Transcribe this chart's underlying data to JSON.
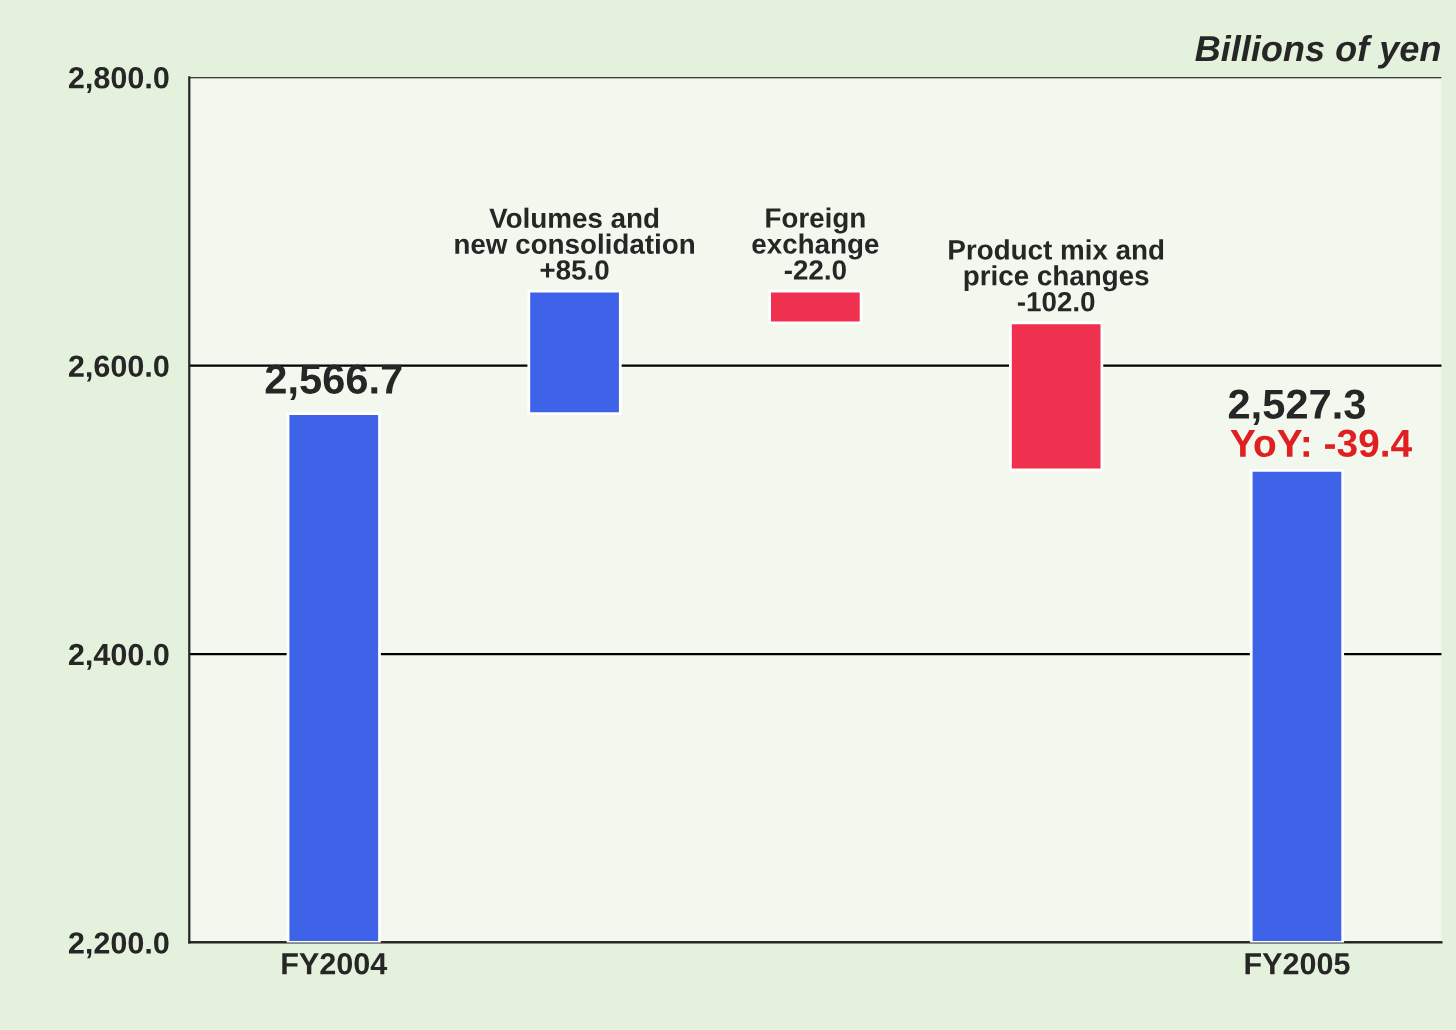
{
  "chart_data": {
    "type": "bar",
    "ylabel": "Billions of yen",
    "categories": [
      "FY2004",
      null,
      null,
      null,
      "FY2005"
    ],
    "base": [
      2200.0,
      2566.7,
      2651.7,
      2629.7,
      2200.0
    ],
    "values": [
      366.7,
      85.0,
      -22.0,
      -102.0,
      327.3
    ],
    "colors": [
      "#3f63e8",
      "#3f63e8",
      "#f0304f",
      "#f0304f",
      "#3f63e8"
    ],
    "value_labels": [
      "2,566.7",
      "+85.0",
      "-22.0",
      "-102.0",
      "2,527.3"
    ],
    "annotations": [
      "Volumes and\nnew consolidation",
      "Foreign\nexchange",
      "Product mix and\nprice changes",
      "YoY: -39.4"
    ],
    "ylim": [
      2200,
      2800
    ],
    "yticks": [
      {
        "value": 2200,
        "label": "2,200.0"
      },
      {
        "value": 2400,
        "label": "2,400.0"
      },
      {
        "value": 2600,
        "label": "2,600.0"
      },
      {
        "value": 2800,
        "label": "2,800.0"
      }
    ],
    "grid": "y",
    "legend": false
  }
}
